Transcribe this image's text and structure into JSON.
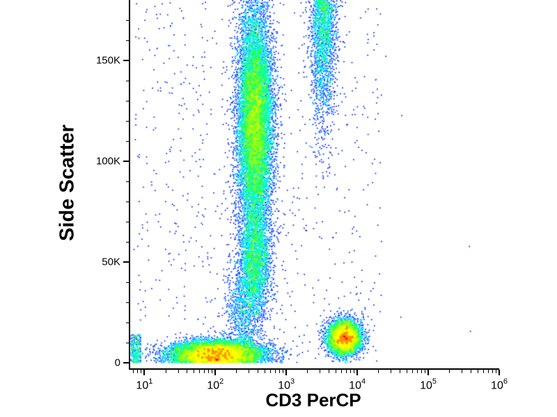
{
  "figure": {
    "background": "#ffffff"
  },
  "chart_data": {
    "type": "scatter",
    "subtype": "flow-cytometry-density-dot-plot",
    "title": "",
    "xlabel": "CD3 PerCP",
    "ylabel": "Side Scatter",
    "x_scale": "log10",
    "x_log_range": [
      0.8,
      6.0
    ],
    "y_range": [
      0,
      180000
    ],
    "grid": false,
    "legend": false,
    "x_ticks": [
      {
        "base": "10",
        "exp": "1",
        "log": 1
      },
      {
        "base": "10",
        "exp": "2",
        "log": 2
      },
      {
        "base": "10",
        "exp": "3",
        "log": 3
      },
      {
        "base": "10",
        "exp": "4",
        "log": 4
      },
      {
        "base": "10",
        "exp": "5",
        "log": 5
      },
      {
        "base": "10",
        "exp": "6",
        "log": 6
      }
    ],
    "y_ticks": [
      {
        "label": "0",
        "value": 0
      },
      {
        "label": "50K",
        "value": 50000
      },
      {
        "label": "100K",
        "value": 100000
      },
      {
        "label": "150K",
        "value": 150000
      }
    ],
    "y_minor_step": 10000,
    "density_colormap": [
      "#000080",
      "#0020ff",
      "#0060ff",
      "#00a0ff",
      "#00e0ff",
      "#00ffb0",
      "#20ff60",
      "#80ff20",
      "#d0ff00",
      "#ffff00",
      "#ff9000",
      "#ff0000"
    ],
    "density_log_cap": 80,
    "populations": [
      {
        "name": "debris-erythrocyte-band",
        "shape": "gaussian",
        "count": 9000,
        "x_log_mean": 2.02,
        "x_log_sigma": 0.32,
        "y_mean": 4500,
        "y_sigma": 3200,
        "y_fold_zero": true
      },
      {
        "name": "granulocytes-column",
        "shape": "gaussian",
        "count": 12000,
        "x_log_mean": 2.56,
        "x_log_sigma": 0.125,
        "y_mean": 119000,
        "y_sigma": 29000
      },
      {
        "name": "monocyte-transition",
        "shape": "gaussian",
        "count": 2400,
        "x_log_mean": 2.56,
        "x_log_sigma": 0.11,
        "y_mean": 50000,
        "y_sigma": 13000
      },
      {
        "name": "low-transition",
        "shape": "gaussian",
        "count": 900,
        "x_log_mean": 2.42,
        "x_log_sigma": 0.14,
        "y_mean": 26000,
        "y_sigma": 12000
      },
      {
        "name": "cd3-positive-lymphocytes",
        "shape": "gaussian",
        "count": 5200,
        "x_log_mean": 3.82,
        "x_log_sigma": 0.115,
        "y_mean": 12500,
        "y_sigma": 4200
      },
      {
        "name": "cd3-positive-high-ssc-streak",
        "shape": "half_gaussian_top",
        "count": 2200,
        "x_log_mean": 3.52,
        "x_log_sigma": 0.09,
        "y_top": 186000,
        "y_sigma": 32000
      },
      {
        "name": "axis-pileup",
        "shape": "uniform",
        "count": 300,
        "x_log_range": [
          0.81,
          0.95
        ],
        "y_range": [
          0,
          14000
        ]
      },
      {
        "name": "background",
        "shape": "uniform",
        "count": 750,
        "x_log_range": [
          0.85,
          4.35
        ],
        "y_range": [
          0,
          179000
        ]
      },
      {
        "name": "rare-events",
        "shape": "uniform",
        "count": 5,
        "x_log_range": [
          4.4,
          5.95
        ],
        "y_range": [
          0,
          160000
        ]
      }
    ]
  }
}
